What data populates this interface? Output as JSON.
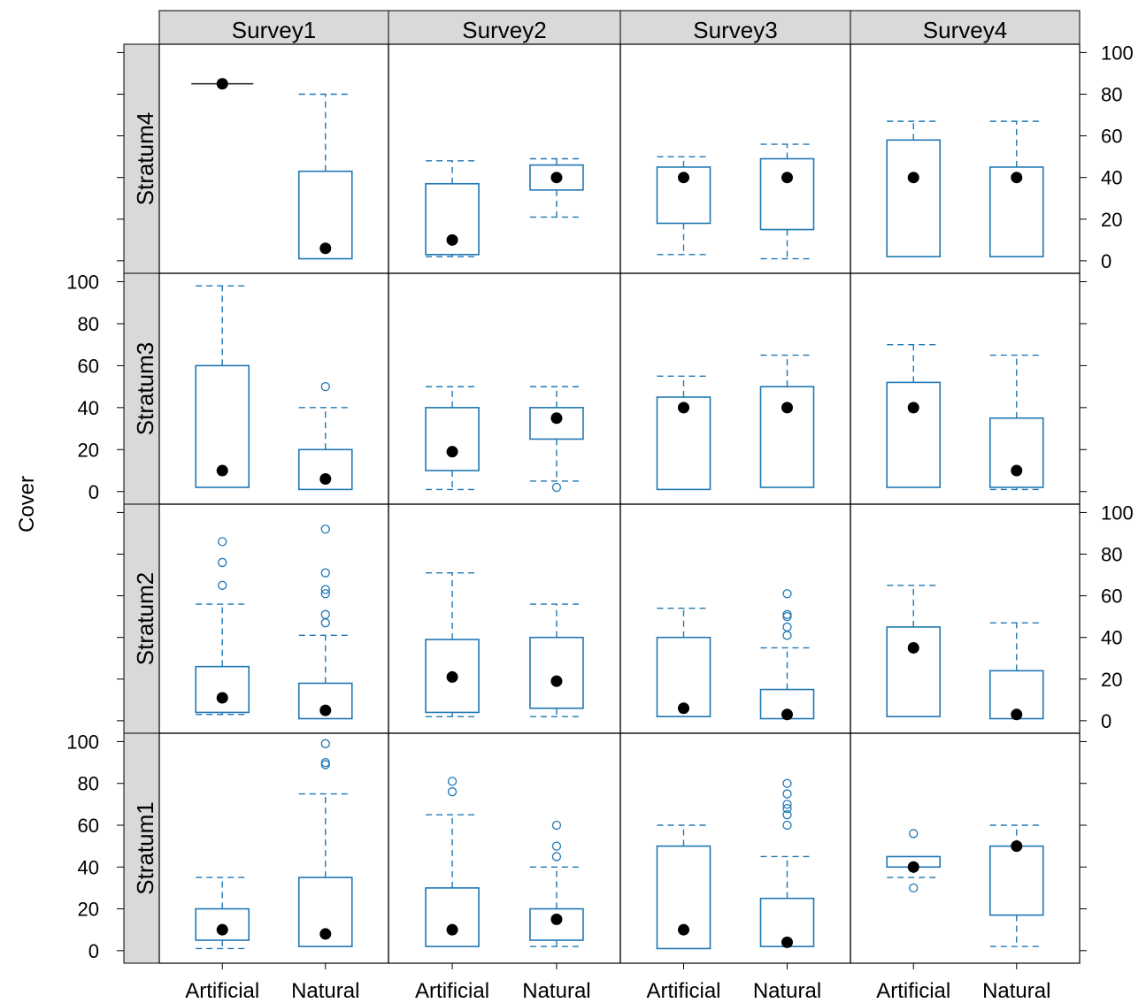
{
  "chart_data": {
    "type": "boxplot",
    "ylabel": "Cover",
    "columns": [
      "Survey1",
      "Survey2",
      "Survey3",
      "Survey4"
    ],
    "rows": [
      "Stratum4",
      "Stratum3",
      "Stratum2",
      "Stratum1"
    ],
    "categories": [
      "Artificial",
      "Natural"
    ],
    "y_ticks": [
      "0",
      "20",
      "40",
      "60",
      "80",
      "100"
    ],
    "ylim": [
      -6,
      104
    ],
    "colors": {
      "box": "#1f77b4",
      "median": "#000000",
      "strip": "#d9d9d9",
      "frame": "#000000"
    },
    "panels": [
      {
        "row": "Stratum4",
        "col": "Survey1",
        "boxes": [
          {
            "category": "Artificial",
            "min": 85,
            "q1": 85,
            "median": 85,
            "q3": 85,
            "max": 85,
            "outliers": []
          },
          {
            "category": "Natural",
            "min": 1,
            "q1": 1,
            "median": 6,
            "q3": 43,
            "max": 80,
            "outliers": []
          }
        ]
      },
      {
        "row": "Stratum4",
        "col": "Survey2",
        "boxes": [
          {
            "category": "Artificial",
            "min": 2,
            "q1": 3,
            "median": 10,
            "q3": 37,
            "max": 48,
            "outliers": []
          },
          {
            "category": "Natural",
            "min": 21,
            "q1": 34,
            "median": 40,
            "q3": 46,
            "max": 49,
            "outliers": []
          }
        ]
      },
      {
        "row": "Stratum4",
        "col": "Survey3",
        "boxes": [
          {
            "category": "Artificial",
            "min": 3,
            "q1": 18,
            "median": 40,
            "q3": 45,
            "max": 50,
            "outliers": []
          },
          {
            "category": "Natural",
            "min": 1,
            "q1": 15,
            "median": 40,
            "q3": 49,
            "max": 56,
            "outliers": []
          }
        ]
      },
      {
        "row": "Stratum4",
        "col": "Survey4",
        "boxes": [
          {
            "category": "Artificial",
            "min": 2,
            "q1": 2,
            "median": 40,
            "q3": 58,
            "max": 67,
            "outliers": []
          },
          {
            "category": "Natural",
            "min": 2,
            "q1": 2,
            "median": 40,
            "q3": 45,
            "max": 67,
            "outliers": []
          }
        ]
      },
      {
        "row": "Stratum3",
        "col": "Survey1",
        "boxes": [
          {
            "category": "Artificial",
            "min": 2,
            "q1": 2,
            "median": 10,
            "q3": 60,
            "max": 98,
            "outliers": []
          },
          {
            "category": "Natural",
            "min": 1,
            "q1": 1,
            "median": 6,
            "q3": 20,
            "max": 40,
            "outliers": [
              50
            ]
          }
        ]
      },
      {
        "row": "Stratum3",
        "col": "Survey2",
        "boxes": [
          {
            "category": "Artificial",
            "min": 1,
            "q1": 10,
            "median": 19,
            "q3": 40,
            "max": 50,
            "outliers": []
          },
          {
            "category": "Natural",
            "min": 5,
            "q1": 25,
            "median": 35,
            "q3": 40,
            "max": 50,
            "outliers": [
              2
            ]
          }
        ]
      },
      {
        "row": "Stratum3",
        "col": "Survey3",
        "boxes": [
          {
            "category": "Artificial",
            "min": 1,
            "q1": 1,
            "median": 40,
            "q3": 45,
            "max": 55,
            "outliers": []
          },
          {
            "category": "Natural",
            "min": 2,
            "q1": 2,
            "median": 40,
            "q3": 50,
            "max": 65,
            "outliers": []
          }
        ]
      },
      {
        "row": "Stratum3",
        "col": "Survey4",
        "boxes": [
          {
            "category": "Artificial",
            "min": 2,
            "q1": 2,
            "median": 40,
            "q3": 52,
            "max": 70,
            "outliers": []
          },
          {
            "category": "Natural",
            "min": 1,
            "q1": 2,
            "median": 10,
            "q3": 35,
            "max": 65,
            "outliers": []
          }
        ]
      },
      {
        "row": "Stratum2",
        "col": "Survey1",
        "boxes": [
          {
            "category": "Artificial",
            "min": 3,
            "q1": 4,
            "median": 11,
            "q3": 26,
            "max": 56,
            "outliers": [
              65,
              76,
              86
            ]
          },
          {
            "category": "Natural",
            "min": 1,
            "q1": 1,
            "median": 5,
            "q3": 18,
            "max": 41,
            "outliers": [
              47,
              51,
              61,
              63,
              71,
              92
            ]
          }
        ]
      },
      {
        "row": "Stratum2",
        "col": "Survey2",
        "boxes": [
          {
            "category": "Artificial",
            "min": 2,
            "q1": 4,
            "median": 21,
            "q3": 39,
            "max": 71,
            "outliers": []
          },
          {
            "category": "Natural",
            "min": 2,
            "q1": 6,
            "median": 19,
            "q3": 40,
            "max": 56,
            "outliers": []
          }
        ]
      },
      {
        "row": "Stratum2",
        "col": "Survey3",
        "boxes": [
          {
            "category": "Artificial",
            "min": 2,
            "q1": 2,
            "median": 6,
            "q3": 40,
            "max": 54,
            "outliers": []
          },
          {
            "category": "Natural",
            "min": 1,
            "q1": 1,
            "median": 3,
            "q3": 15,
            "max": 35,
            "outliers": [
              41,
              45,
              50,
              51,
              61
            ]
          }
        ]
      },
      {
        "row": "Stratum2",
        "col": "Survey4",
        "boxes": [
          {
            "category": "Artificial",
            "min": 2,
            "q1": 2,
            "median": 35,
            "q3": 45,
            "max": 65,
            "outliers": []
          },
          {
            "category": "Natural",
            "min": 1,
            "q1": 1,
            "median": 3,
            "q3": 24,
            "max": 47,
            "outliers": []
          }
        ]
      },
      {
        "row": "Stratum1",
        "col": "Survey1",
        "boxes": [
          {
            "category": "Artificial",
            "min": 1,
            "q1": 5,
            "median": 10,
            "q3": 20,
            "max": 35,
            "outliers": []
          },
          {
            "category": "Natural",
            "min": 2,
            "q1": 2,
            "median": 8,
            "q3": 35,
            "max": 75,
            "outliers": [
              89,
              90,
              99
            ]
          }
        ]
      },
      {
        "row": "Stratum1",
        "col": "Survey2",
        "boxes": [
          {
            "category": "Artificial",
            "min": 2,
            "q1": 2,
            "median": 10,
            "q3": 30,
            "max": 65,
            "outliers": [
              76,
              81
            ]
          },
          {
            "category": "Natural",
            "min": 2,
            "q1": 5,
            "median": 15,
            "q3": 20,
            "max": 40,
            "outliers": [
              45,
              50,
              60
            ]
          }
        ]
      },
      {
        "row": "Stratum1",
        "col": "Survey3",
        "boxes": [
          {
            "category": "Artificial",
            "min": 1,
            "q1": 1,
            "median": 10,
            "q3": 50,
            "max": 60,
            "outliers": []
          },
          {
            "category": "Natural",
            "min": 2,
            "q1": 2,
            "median": 4,
            "q3": 25,
            "max": 45,
            "outliers": [
              60,
              65,
              68,
              70,
              75,
              80
            ]
          }
        ]
      },
      {
        "row": "Stratum1",
        "col": "Survey4",
        "boxes": [
          {
            "category": "Artificial",
            "min": 35,
            "q1": 40,
            "median": 40,
            "q3": 45,
            "max": 45,
            "outliers": [
              30,
              56
            ]
          },
          {
            "category": "Natural",
            "min": 2,
            "q1": 17,
            "median": 50,
            "q3": 50,
            "max": 60,
            "outliers": []
          }
        ]
      }
    ]
  }
}
